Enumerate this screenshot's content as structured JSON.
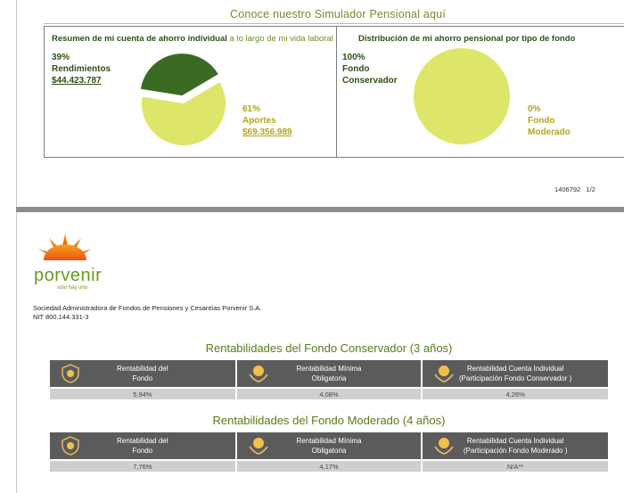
{
  "page1": {
    "simulator_link": "Conoce nuestro Simulador Pensional aquí",
    "summary_box": {
      "title_bold": "Resumen de mi cuenta de ahorro individual",
      "title_light": " a lo largo de mi vida laboral",
      "slices": [
        {
          "key": "rendimientos",
          "percent": "39%",
          "label": "Rendimientos",
          "amount": "$44.423.787",
          "fraction": 0.39,
          "color": "#3b6b22"
        },
        {
          "key": "aportes",
          "percent": "61%",
          "label": "Aportes",
          "amount": "$69.356.989",
          "fraction": 0.61,
          "color": "#dde66a"
        }
      ]
    },
    "distribution_box": {
      "title": "Distribución de mi ahorro pensional por tipo de fondo",
      "fund_a": {
        "percent": "100%",
        "line1": "Fondo",
        "line2": "Conservador",
        "fraction": 1.0,
        "color": "#dde66a"
      },
      "fund_b": {
        "percent": "0%",
        "line1": "Fondo",
        "line2": "Moderado",
        "fraction": 0.0
      }
    },
    "doc_code": "1406792",
    "page_number": "1/2"
  },
  "page2": {
    "logo": {
      "word": "porvenir",
      "tagline": "sólo hay uno"
    },
    "entity_name": "Sociedad Administradora de Fondos de Pensiones y Cesantías Porvenir S.A.",
    "nit": "NIT 800.144.331-3",
    "conservador": {
      "title": "Rentabilidades del Fondo Conservador (3 años)",
      "headers": [
        {
          "line1": "Rentabilidad del",
          "line2": "Fondo"
        },
        {
          "line1": "Rentabilidad Mínima",
          "line2": "Obligatoria"
        },
        {
          "line1": "Rentabilidad Cuenta Individual",
          "line2": "(Participación Fondo Conservador )"
        }
      ],
      "values": [
        "5,94%",
        "4,08%",
        "4,26%"
      ]
    },
    "moderado": {
      "title": "Rentabilidades del Fondo Moderado (4 años)",
      "headers": [
        {
          "line1": "Rentabilidad del",
          "line2": "Fondo"
        },
        {
          "line1": "Rentabilidad Mínima",
          "line2": "Obligatoria"
        },
        {
          "line1": "Rentabilidad Cuenta Individual",
          "line2": "(Participación Fondo Moderado )"
        }
      ],
      "values": [
        "7,76%",
        "4,17%",
        "N/A**"
      ]
    }
  }
}
